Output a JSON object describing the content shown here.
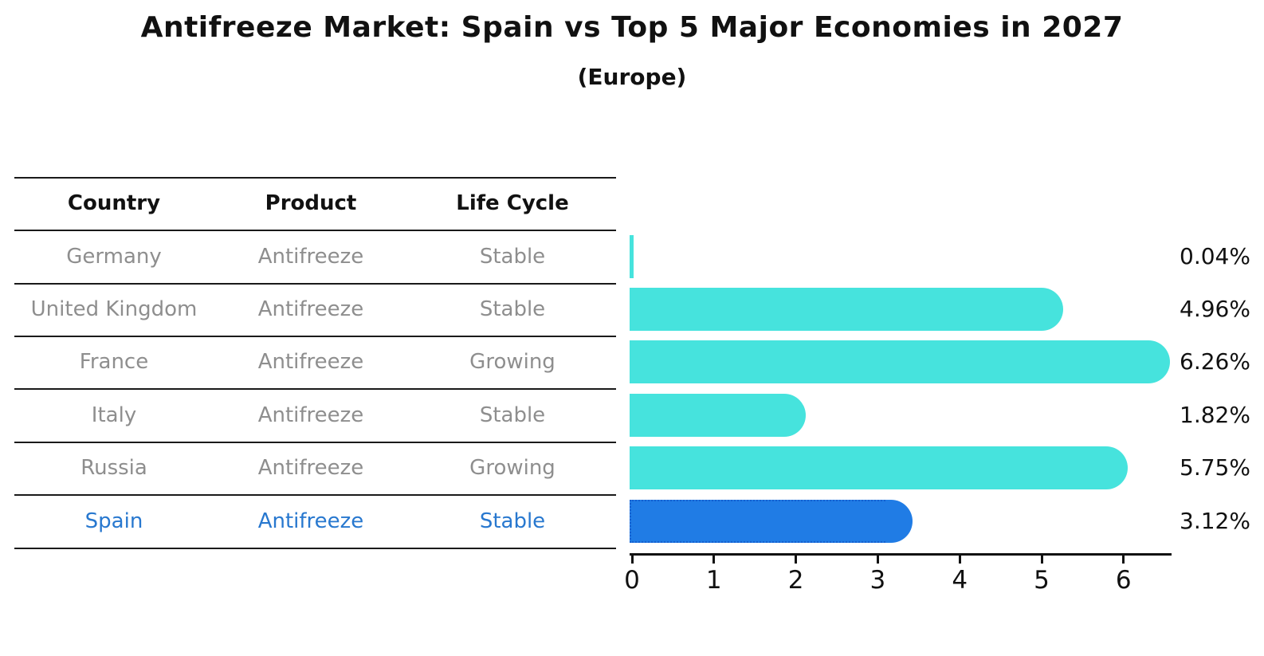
{
  "title": "Antifreeze Market: Spain vs Top 5 Major Economies in 2027",
  "subtitle": "(Europe)",
  "table": {
    "headers": [
      "Country",
      "Product",
      "Life Cycle"
    ],
    "rows": [
      {
        "country": "Germany",
        "product": "Antifreeze",
        "life_cycle": "Stable",
        "highlighted": false
      },
      {
        "country": "United Kingdom",
        "product": "Antifreeze",
        "life_cycle": "Stable",
        "highlighted": false
      },
      {
        "country": "France",
        "product": "Antifreeze",
        "life_cycle": "Growing",
        "highlighted": false
      },
      {
        "country": "Italy",
        "product": "Antifreeze",
        "life_cycle": "Stable",
        "highlighted": false
      },
      {
        "country": "Russia",
        "product": "Antifreeze",
        "life_cycle": "Growing",
        "highlighted": false
      },
      {
        "country": "Spain",
        "product": "Antifreeze",
        "life_cycle": "Stable",
        "highlighted": true
      }
    ]
  },
  "chart_data": {
    "type": "bar",
    "orientation": "horizontal",
    "categories": [
      "Germany",
      "United Kingdom",
      "France",
      "Italy",
      "Russia",
      "Spain"
    ],
    "values": [
      0.04,
      4.96,
      6.26,
      1.82,
      5.75,
      3.12
    ],
    "value_labels": [
      "0.04%",
      "4.96%",
      "6.26%",
      "1.82%",
      "5.75%",
      "3.12%"
    ],
    "x_ticks": [
      "0",
      "1",
      "2",
      "3",
      "4",
      "5",
      "6"
    ],
    "xlim": [
      0,
      6.6
    ],
    "grid": false,
    "legend": "none",
    "highlight_category": "Spain",
    "title": "Antifreeze Market: Spain vs Top 5 Major Economies in 2027",
    "subtitle": "(Europe)"
  },
  "colors": {
    "bar": "#46E3DD",
    "highlight_bar": "#207CE5",
    "highlight_border": "#1560D0",
    "highlight_text": "#2878CF",
    "muted_text": "#8E8E8E",
    "text": "#111111"
  }
}
